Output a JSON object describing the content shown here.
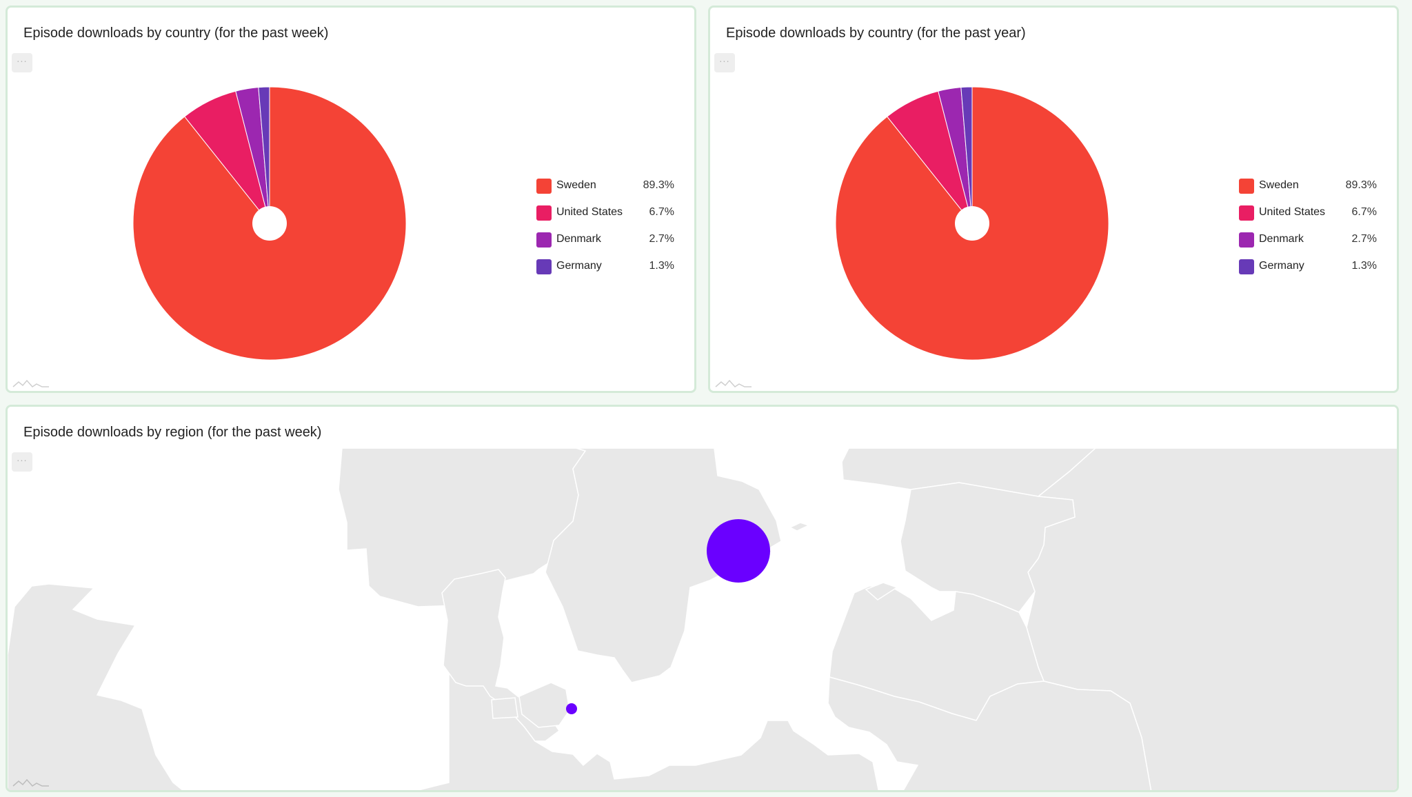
{
  "menu_glyph": "···",
  "cards": [
    {
      "title": "Episode downloads by country (for the past week)"
    },
    {
      "title": "Episode downloads by country (for the past year)"
    },
    {
      "title": "Episode downloads by region (for the past week)"
    }
  ],
  "chart_data": [
    {
      "type": "pie",
      "title": "Episode downloads by country (for the past week)",
      "categories": [
        "Sweden",
        "United States",
        "Denmark",
        "Germany"
      ],
      "values": [
        89.3,
        6.7,
        2.7,
        1.3
      ],
      "value_labels": [
        "89.3%",
        "6.7%",
        "2.7%",
        "1.3%"
      ],
      "colors": [
        "#f44336",
        "#e91e63",
        "#9c27b0",
        "#673ab7"
      ],
      "legend_placement": "right"
    },
    {
      "type": "pie",
      "title": "Episode downloads by country (for the past year)",
      "categories": [
        "Sweden",
        "United States",
        "Denmark",
        "Germany"
      ],
      "values": [
        89.3,
        6.7,
        2.7,
        1.3
      ],
      "value_labels": [
        "89.3%",
        "6.7%",
        "2.7%",
        "1.3%"
      ],
      "colors": [
        "#f44336",
        "#e91e63",
        "#9c27b0",
        "#673ab7"
      ],
      "legend_placement": "right"
    }
  ],
  "map": {
    "title": "Episode downloads by region (for the past week)",
    "land_color": "#e8e8e8",
    "border_color": "#ffffff",
    "bubble_color": "#6a00ff",
    "bubbles": [
      {
        "region": "Stockholm area",
        "size": "large"
      },
      {
        "region": "Copenhagen area",
        "size": "small"
      }
    ]
  }
}
